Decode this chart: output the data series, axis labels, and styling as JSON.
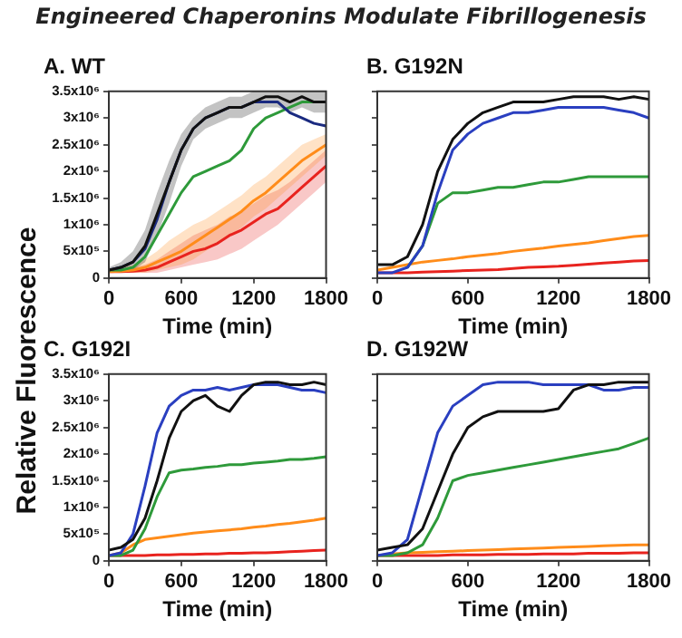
{
  "chart_data": [
    {
      "type": "line",
      "title": "A. WT",
      "xlabel": "Time (min)",
      "ylabel": "Relative Fluorescence",
      "annotations": [
        "Engineered Chaperonins Modulate Fibrillogenesis"
      ],
      "x": [
        0,
        100,
        200,
        300,
        400,
        500,
        600,
        700,
        800,
        900,
        1000,
        1100,
        1200,
        1300,
        1400,
        1500,
        1600,
        1700,
        1800
      ],
      "xlim": [
        0,
        1800
      ],
      "xticks": [
        0,
        600,
        1200,
        1800
      ],
      "ylim": [
        0,
        3500000
      ],
      "yticks": [
        0,
        {
          "value": 500000,
          "label": "5x10⁵"
        },
        {
          "value": 1000000,
          "label": "1x10⁶"
        },
        {
          "value": 1500000,
          "label": "1.5x10⁶"
        },
        {
          "value": 2000000,
          "label": "2x10⁶"
        },
        {
          "value": 2500000,
          "label": "2.5x10⁶"
        },
        {
          "value": 3000000,
          "label": "3x10⁶"
        },
        {
          "value": 3500000,
          "label": "3.5x10⁶"
        }
      ],
      "grid": false,
      "legend": false,
      "marker": "none",
      "line_style": "solid",
      "series": [
        {
          "color": "#111111",
          "values": [
            150000,
            200000,
            300000,
            600000,
            1200000,
            1800000,
            2400000,
            2800000,
            3000000,
            3100000,
            3200000,
            3200000,
            3300000,
            3400000,
            3400000,
            3300000,
            3400000,
            3300000,
            3300000
          ],
          "lower": [
            100000,
            100000,
            150000,
            300000,
            800000,
            1400000,
            2100000,
            2600000,
            2800000,
            2900000,
            3000000,
            3000000,
            3100000,
            3200000,
            3200000,
            3100000,
            3200000,
            3100000,
            3100000
          ],
          "upper": [
            200000,
            300000,
            500000,
            900000,
            1600000,
            2200000,
            2700000,
            3000000,
            3200000,
            3300000,
            3400000,
            3400000,
            3500000,
            3500000,
            3500000,
            3500000,
            3500000,
            3500000,
            3500000
          ]
        },
        {
          "color": "#1a2a80",
          "values": [
            150000,
            200000,
            300000,
            550000,
            1100000,
            1800000,
            2400000,
            2800000,
            3000000,
            3100000,
            3200000,
            3200000,
            3300000,
            3300000,
            3300000,
            3100000,
            3000000,
            2900000,
            2850000
          ]
        },
        {
          "color": "#2e9a3a",
          "values": [
            150000,
            150000,
            200000,
            400000,
            800000,
            1200000,
            1600000,
            1900000,
            2000000,
            2100000,
            2200000,
            2400000,
            2800000,
            3000000,
            3100000,
            3200000,
            3300000,
            3300000,
            3300000
          ]
        },
        {
          "color": "#ff8c1a",
          "values": [
            120000,
            130000,
            150000,
            200000,
            300000,
            400000,
            500000,
            650000,
            800000,
            950000,
            1100000,
            1250000,
            1450000,
            1600000,
            1800000,
            2000000,
            2200000,
            2350000,
            2500000
          ],
          "lower": [
            100000,
            100000,
            100000,
            100000,
            150000,
            200000,
            250000,
            350000,
            500000,
            650000,
            800000,
            950000,
            1150000,
            1300000,
            1500000,
            1700000,
            1900000,
            2100000,
            2300000
          ],
          "upper": [
            150000,
            200000,
            250000,
            350000,
            500000,
            700000,
            850000,
            1000000,
            1100000,
            1250000,
            1400000,
            1550000,
            1750000,
            1900000,
            2100000,
            2300000,
            2500000,
            2600000,
            2700000
          ]
        },
        {
          "color": "#e8231e",
          "values": [
            120000,
            120000,
            130000,
            150000,
            200000,
            300000,
            400000,
            500000,
            550000,
            650000,
            800000,
            900000,
            1050000,
            1200000,
            1300000,
            1500000,
            1700000,
            1900000,
            2100000
          ],
          "lower": [
            100000,
            100000,
            100000,
            100000,
            100000,
            150000,
            200000,
            250000,
            300000,
            350000,
            450000,
            550000,
            700000,
            850000,
            1000000,
            1200000,
            1400000,
            1600000,
            1800000
          ],
          "upper": [
            150000,
            150000,
            200000,
            250000,
            350000,
            500000,
            650000,
            800000,
            900000,
            1000000,
            1150000,
            1250000,
            1400000,
            1550000,
            1650000,
            1800000,
            2000000,
            2200000,
            2400000
          ]
        }
      ]
    },
    {
      "type": "line",
      "title": "B. G192N",
      "xlabel": "Time (min)",
      "tick_labels": "x",
      "x": [
        0,
        100,
        200,
        300,
        400,
        500,
        600,
        700,
        800,
        900,
        1000,
        1100,
        1200,
        1300,
        1400,
        1500,
        1600,
        1700,
        1800
      ],
      "xlim": [
        0,
        1800
      ],
      "xticks": [
        0,
        600,
        1200,
        1800
      ],
      "ylim": [
        0,
        3500000
      ],
      "yticks": [
        0,
        500000,
        1000000,
        1500000,
        2000000,
        2500000,
        3000000,
        3500000
      ],
      "grid": false,
      "legend": false,
      "marker": "none",
      "line_style": "solid",
      "series": [
        {
          "color": "#111111",
          "values": [
            250000,
            250000,
            400000,
            1000000,
            2000000,
            2600000,
            2900000,
            3100000,
            3200000,
            3300000,
            3300000,
            3300000,
            3350000,
            3400000,
            3400000,
            3400000,
            3350000,
            3400000,
            3350000
          ]
        },
        {
          "color": "#2a3fc0",
          "values": [
            100000,
            100000,
            200000,
            600000,
            1600000,
            2400000,
            2700000,
            2900000,
            3000000,
            3100000,
            3100000,
            3150000,
            3200000,
            3200000,
            3200000,
            3200000,
            3150000,
            3100000,
            3000000
          ]
        },
        {
          "color": "#2e9a3a",
          "values": [
            null,
            null,
            200000,
            600000,
            1400000,
            1600000,
            1600000,
            1650000,
            1700000,
            1700000,
            1750000,
            1800000,
            1800000,
            1850000,
            1900000,
            1900000,
            1900000,
            1900000,
            1900000
          ]
        },
        {
          "color": "#ff8c1a",
          "values": [
            150000,
            200000,
            250000,
            300000,
            330000,
            360000,
            400000,
            430000,
            460000,
            500000,
            530000,
            560000,
            600000,
            630000,
            660000,
            700000,
            740000,
            780000,
            800000
          ]
        },
        {
          "color": "#e8231e",
          "values": [
            100000,
            100000,
            100000,
            110000,
            120000,
            130000,
            140000,
            150000,
            160000,
            180000,
            200000,
            210000,
            220000,
            240000,
            260000,
            280000,
            300000,
            320000,
            330000
          ]
        }
      ]
    },
    {
      "type": "line",
      "title": "C. G192I",
      "xlabel": "Time (min)",
      "x": [
        0,
        100,
        200,
        300,
        400,
        500,
        600,
        700,
        800,
        900,
        1000,
        1100,
        1200,
        1300,
        1400,
        1500,
        1600,
        1700,
        1800
      ],
      "xlim": [
        0,
        1800
      ],
      "xticks": [
        0,
        600,
        1200,
        1800
      ],
      "ylim": [
        0,
        3500000
      ],
      "yticks": [
        0,
        {
          "value": 500000,
          "label": "5x10⁵"
        },
        {
          "value": 1000000,
          "label": "1x10⁶"
        },
        {
          "value": 1500000,
          "label": "1.5x10⁶"
        },
        {
          "value": 2000000,
          "label": "2x10⁶"
        },
        {
          "value": 2500000,
          "label": "2.5x10⁶"
        },
        {
          "value": 3000000,
          "label": "3x10⁶"
        },
        {
          "value": 3500000,
          "label": "3.5x10⁶"
        }
      ],
      "grid": false,
      "legend": false,
      "marker": "none",
      "line_style": "solid",
      "series": [
        {
          "color": "#111111",
          "values": [
            200000,
            250000,
            400000,
            800000,
            1500000,
            2300000,
            2800000,
            3000000,
            3100000,
            2900000,
            2800000,
            3100000,
            3300000,
            3350000,
            3350000,
            3300000,
            3300000,
            3350000,
            3300000
          ]
        },
        {
          "color": "#2a3fc0",
          "values": [
            100000,
            150000,
            500000,
            1400000,
            2400000,
            2900000,
            3100000,
            3200000,
            3200000,
            3250000,
            3200000,
            3250000,
            3300000,
            3300000,
            3300000,
            3250000,
            3200000,
            3200000,
            3150000
          ]
        },
        {
          "color": "#2e9a3a",
          "values": [
            100000,
            100000,
            200000,
            600000,
            1200000,
            1650000,
            1700000,
            1720000,
            1750000,
            1770000,
            1800000,
            1800000,
            1830000,
            1850000,
            1870000,
            1900000,
            1900000,
            1920000,
            1950000
          ]
        },
        {
          "color": "#ff8c1a",
          "values": [
            100000,
            150000,
            300000,
            400000,
            430000,
            460000,
            490000,
            520000,
            540000,
            560000,
            580000,
            600000,
            630000,
            650000,
            680000,
            700000,
            730000,
            760000,
            800000
          ]
        },
        {
          "color": "#e8231e",
          "values": [
            100000,
            100000,
            100000,
            100000,
            110000,
            110000,
            120000,
            120000,
            130000,
            130000,
            140000,
            140000,
            150000,
            150000,
            160000,
            170000,
            180000,
            190000,
            200000
          ]
        }
      ]
    },
    {
      "type": "line",
      "title": "D. G192W",
      "xlabel": "Time (min)",
      "tick_labels": "x",
      "x": [
        0,
        100,
        200,
        300,
        400,
        500,
        600,
        700,
        800,
        900,
        1000,
        1100,
        1200,
        1300,
        1400,
        1500,
        1600,
        1700,
        1800
      ],
      "xlim": [
        0,
        1800
      ],
      "xticks": [
        0,
        600,
        1200,
        1800
      ],
      "ylim": [
        0,
        3500000
      ],
      "yticks": [
        0,
        500000,
        1000000,
        1500000,
        2000000,
        2500000,
        3000000,
        3500000
      ],
      "grid": false,
      "legend": false,
      "marker": "none",
      "line_style": "solid",
      "series": [
        {
          "color": "#111111",
          "values": [
            200000,
            250000,
            300000,
            600000,
            1300000,
            2000000,
            2500000,
            2700000,
            2800000,
            2800000,
            2800000,
            2800000,
            2850000,
            3200000,
            3300000,
            3300000,
            3350000,
            3350000,
            3350000
          ]
        },
        {
          "color": "#2a3fc0",
          "values": [
            100000,
            150000,
            400000,
            1400000,
            2400000,
            2900000,
            3100000,
            3300000,
            3350000,
            3350000,
            3350000,
            3300000,
            3300000,
            3300000,
            3300000,
            3200000,
            3200000,
            3250000,
            3250000
          ]
        },
        {
          "color": "#2e9a3a",
          "values": [
            100000,
            100000,
            150000,
            300000,
            800000,
            1500000,
            1600000,
            1650000,
            1700000,
            1750000,
            1800000,
            1850000,
            1900000,
            1950000,
            2000000,
            2050000,
            2100000,
            2200000,
            2300000
          ]
        },
        {
          "color": "#ff8c1a",
          "values": [
            100000,
            130000,
            150000,
            160000,
            170000,
            180000,
            190000,
            200000,
            210000,
            220000,
            230000,
            240000,
            250000,
            260000,
            270000,
            280000,
            290000,
            300000,
            300000
          ]
        },
        {
          "color": "#e8231e",
          "values": [
            100000,
            100000,
            100000,
            100000,
            100000,
            110000,
            110000,
            110000,
            120000,
            120000,
            120000,
            130000,
            130000,
            130000,
            140000,
            140000,
            140000,
            150000,
            150000
          ]
        }
      ]
    }
  ]
}
